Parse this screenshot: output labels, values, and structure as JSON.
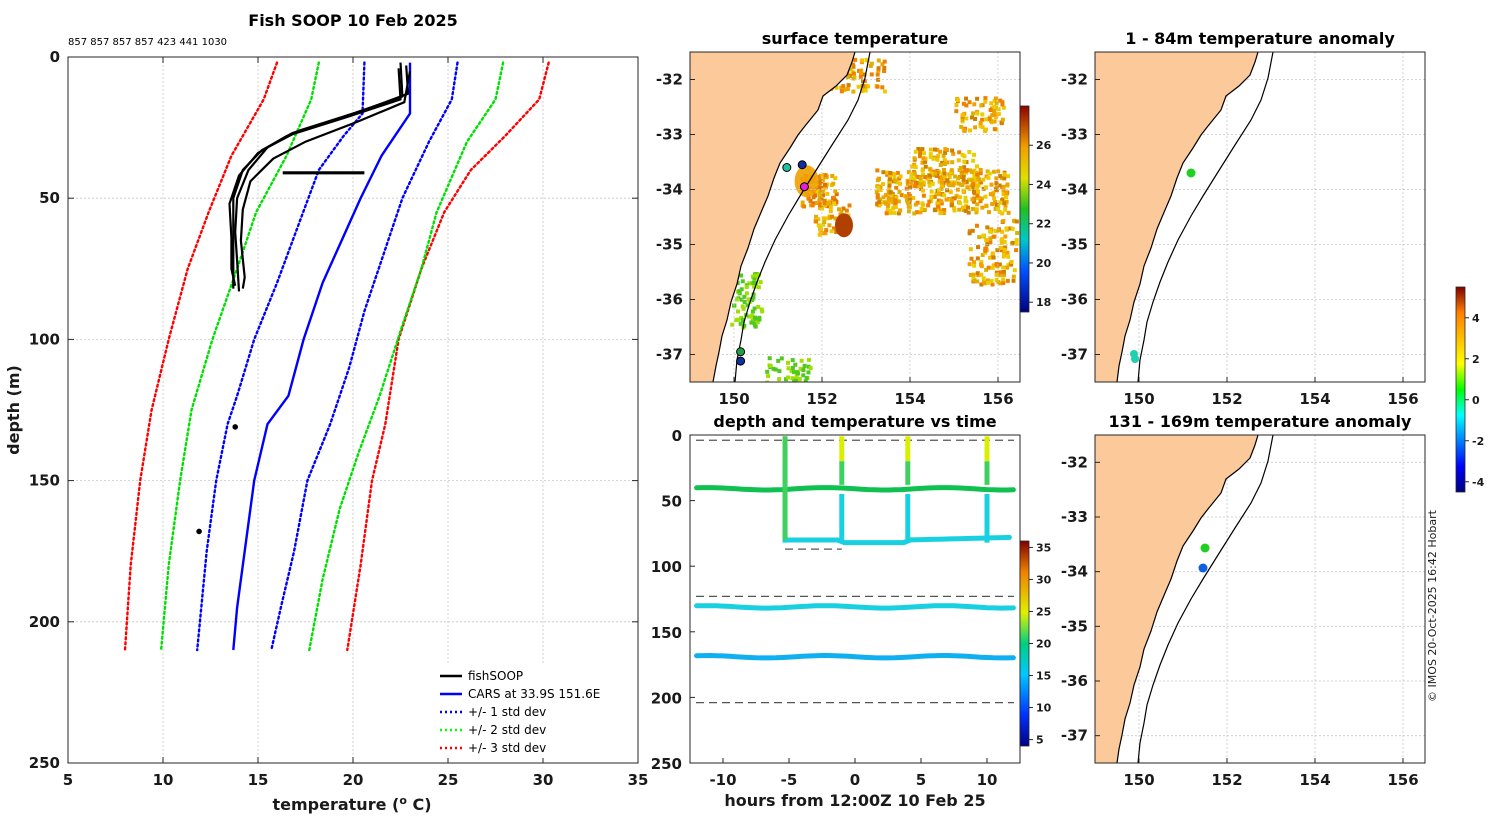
{
  "chart_data": [
    {
      "id": "profile",
      "type": "line",
      "title": "Fish SOOP 10 Feb 2025",
      "subtitle": "857 857 857 857 423 441 1030",
      "xlabel": "temperature (",
      "xlabel_sup": "o",
      "xlabel_tail": " C)",
      "ylabel": "depth (m)",
      "xlim": [
        5,
        35
      ],
      "ylim": [
        0,
        250
      ],
      "xticks": [
        "5",
        "10",
        "15",
        "20",
        "25",
        "30",
        "35"
      ],
      "yticks": [
        "0",
        "50",
        "100",
        "150",
        "200",
        "250"
      ],
      "legend": [
        {
          "label": "fishSOOP",
          "color": "#000000",
          "style": "solid"
        },
        {
          "label": "CARS at 33.9S 151.6E",
          "color": "#0000ff",
          "style": "solid"
        },
        {
          "label": "+/- 1 std dev",
          "color": "#0000ff",
          "style": "dotted"
        },
        {
          "label": "+/- 2 std dev",
          "color": "#00ff00",
          "style": "dotted"
        },
        {
          "label": "+/- 3 std dev",
          "color": "#ff0000",
          "style": "dotted"
        }
      ],
      "cars_mean": [
        [
          23,
          2
        ],
        [
          23,
          20
        ],
        [
          21.5,
          35
        ],
        [
          20.4,
          50
        ],
        [
          19.4,
          65
        ],
        [
          18.4,
          80
        ],
        [
          17.4,
          100
        ],
        [
          16.6,
          120
        ],
        [
          15.5,
          130
        ],
        [
          14.8,
          150
        ],
        [
          14.3,
          175
        ],
        [
          13.9,
          195
        ],
        [
          13.7,
          210
        ]
      ],
      "std1_low": [
        [
          20.6,
          2
        ],
        [
          20.5,
          20
        ],
        [
          19.5,
          28
        ],
        [
          18.2,
          40
        ],
        [
          17.1,
          60
        ],
        [
          16,
          80
        ],
        [
          14.8,
          100
        ],
        [
          13.9,
          120
        ],
        [
          13.4,
          130
        ],
        [
          12.8,
          150
        ],
        [
          12.3,
          175
        ],
        [
          11.8,
          210
        ]
      ],
      "std1_high": [
        [
          25.5,
          2
        ],
        [
          25.2,
          15
        ],
        [
          24,
          30
        ],
        [
          22.6,
          50
        ],
        [
          21.6,
          70
        ],
        [
          20.6,
          90
        ],
        [
          19.8,
          110
        ],
        [
          18.8,
          130
        ],
        [
          17.6,
          150
        ],
        [
          16.9,
          175
        ],
        [
          16.2,
          195
        ],
        [
          15.7,
          210
        ]
      ],
      "std2_low": [
        [
          18.2,
          2
        ],
        [
          17.8,
          15
        ],
        [
          16.5,
          35
        ],
        [
          14.9,
          55
        ],
        [
          13.9,
          75
        ],
        [
          12.6,
          100
        ],
        [
          11.5,
          125
        ],
        [
          10.9,
          150
        ],
        [
          10.3,
          180
        ],
        [
          9.9,
          210
        ]
      ],
      "std2_high": [
        [
          27.9,
          2
        ],
        [
          27.5,
          15
        ],
        [
          26,
          30
        ],
        [
          24.4,
          55
        ],
        [
          23.6,
          75
        ],
        [
          22.6,
          95
        ],
        [
          21.4,
          120
        ],
        [
          20.3,
          140
        ],
        [
          19.3,
          160
        ],
        [
          18.4,
          185
        ],
        [
          17.7,
          210
        ]
      ],
      "std3_low": [
        [
          16,
          2
        ],
        [
          15.3,
          15
        ],
        [
          13.6,
          35
        ],
        [
          12.4,
          55
        ],
        [
          11.3,
          75
        ],
        [
          10.3,
          100
        ],
        [
          9.4,
          125
        ],
        [
          8.8,
          150
        ],
        [
          8.3,
          180
        ],
        [
          8,
          210
        ]
      ],
      "std3_high": [
        [
          30.3,
          2
        ],
        [
          29.8,
          15
        ],
        [
          28,
          28
        ],
        [
          26.2,
          40
        ],
        [
          24.8,
          55
        ],
        [
          23.6,
          75
        ],
        [
          22.4,
          100
        ],
        [
          21.7,
          130
        ],
        [
          21,
          150
        ],
        [
          20.4,
          180
        ],
        [
          19.7,
          210
        ]
      ],
      "fish_profiles": [
        [
          [
            22.5,
            2
          ],
          [
            22.6,
            14
          ],
          [
            20,
            20
          ],
          [
            16.8,
            27
          ],
          [
            15.2,
            33
          ],
          [
            14.2,
            40
          ],
          [
            13.7,
            50
          ],
          [
            13.7,
            60
          ],
          [
            13.7,
            70
          ],
          [
            13.7,
            82
          ]
        ],
        [
          [
            22.8,
            3
          ],
          [
            22.9,
            13
          ],
          [
            20.5,
            19
          ],
          [
            17.2,
            26
          ],
          [
            15.5,
            32
          ],
          [
            14.5,
            40
          ],
          [
            13.9,
            50
          ],
          [
            13.8,
            62
          ],
          [
            13.9,
            72
          ],
          [
            14,
            83
          ]
        ],
        [
          [
            22.4,
            4
          ],
          [
            22.5,
            15
          ],
          [
            19.8,
            21
          ],
          [
            16.5,
            28
          ],
          [
            15,
            34
          ],
          [
            14,
            42
          ],
          [
            13.5,
            52
          ],
          [
            13.6,
            64
          ],
          [
            13.6,
            75
          ],
          [
            13.8,
            81
          ]
        ],
        [
          [
            23,
            5
          ],
          [
            22.7,
            16
          ],
          [
            20.2,
            23
          ],
          [
            17.5,
            30
          ],
          [
            15.8,
            36
          ],
          [
            14.6,
            44
          ],
          [
            14.2,
            54
          ],
          [
            14.1,
            65
          ],
          [
            14.3,
            78
          ],
          [
            14.2,
            82
          ]
        ]
      ],
      "fish_segment": [
        [
          16.3,
          41
        ],
        [
          20.6,
          41
        ]
      ],
      "fish_points": [
        [
          13.8,
          131
        ],
        [
          11.9,
          168
        ]
      ]
    },
    {
      "id": "sst",
      "type": "heatmap",
      "title": "surface temperature",
      "xticks": [
        "150",
        "152",
        "154",
        "156"
      ],
      "yticks": [
        "-32",
        "-33",
        "-34",
        "-35",
        "-36",
        "-37"
      ],
      "xlim": [
        149,
        156.5
      ],
      "ylim": [
        -37.5,
        -31.5
      ],
      "colorbar_ticks": [
        "18",
        "20",
        "22",
        "24",
        "26"
      ],
      "colorbar_range": [
        17.5,
        28
      ]
    },
    {
      "id": "anom_top",
      "type": "scatter",
      "title": "1 - 84m temperature anomaly",
      "xticks": [
        "150",
        "152",
        "154",
        "156"
      ],
      "yticks": [
        "-32",
        "-33",
        "-34",
        "-35",
        "-36",
        "-37"
      ],
      "xlim": [
        149,
        156.5
      ],
      "ylim": [
        -37.5,
        -31.5
      ]
    },
    {
      "id": "depth_time",
      "type": "scatter",
      "title": "depth and temperature vs time",
      "xlabel": "hours from 12:00Z 10 Feb 25",
      "xticks": [
        "-10",
        "-5",
        "0",
        "5",
        "10"
      ],
      "yticks": [
        "0",
        "50",
        "100",
        "150",
        "200",
        "250"
      ],
      "xlim": [
        -12.5,
        12.5
      ],
      "ylim": [
        0,
        250
      ],
      "colorbar_ticks": [
        "5",
        "10",
        "15",
        "20",
        "25",
        "30",
        "35"
      ],
      "colorbar_range": [
        4,
        36
      ],
      "dashed_levels": [
        4,
        123,
        204
      ],
      "tracks": [
        {
          "depth": 131,
          "temperature": 14,
          "from": -12,
          "to": 12
        },
        {
          "depth": 169,
          "temperature": 12.5,
          "from": -12,
          "to": 12
        },
        {
          "depth": 41,
          "temperature": 21,
          "from": -12,
          "to": 12
        }
      ],
      "casts": [
        -5.3,
        -1,
        4,
        10
      ]
    },
    {
      "id": "anom_bottom",
      "type": "scatter",
      "title": "131 - 169m temperature anomaly",
      "xticks": [
        "150",
        "152",
        "154",
        "156"
      ],
      "yticks": [
        "-32",
        "-33",
        "-34",
        "-35",
        "-36",
        "-37"
      ],
      "xlim": [
        149,
        156.5
      ],
      "ylim": [
        -37.5,
        -31.5
      ],
      "colorbar_ticks": [
        "-4",
        "-2",
        "0",
        "2",
        "4"
      ],
      "colorbar_range": [
        -4.5,
        5.5
      ]
    }
  ],
  "copyright": "© IMOS 20-Oct-2025 16:42 Hobart"
}
